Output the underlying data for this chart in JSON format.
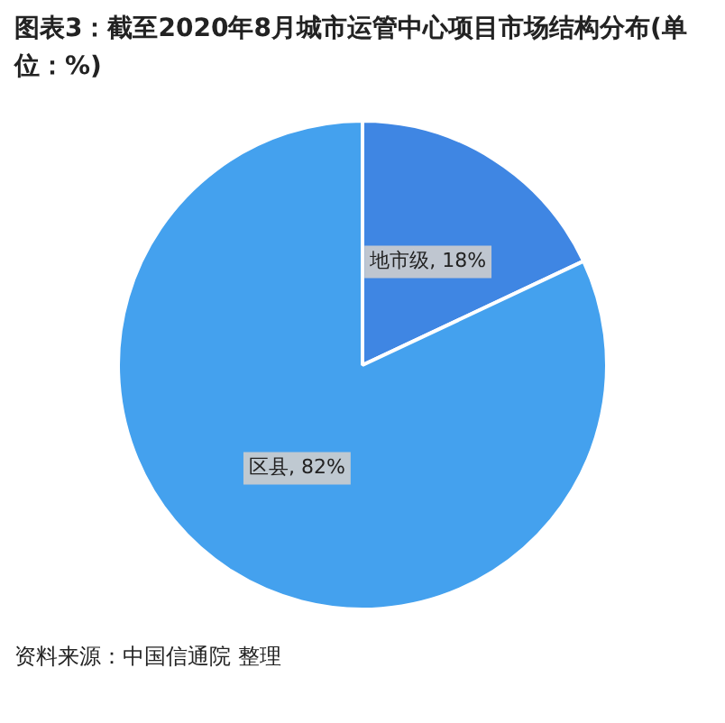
{
  "chart_data": {
    "type": "pie",
    "title": "图表3：截至2020年8月城市运管中心项目市场结构分布(单位：%)",
    "categories": [
      "地市级",
      "区县"
    ],
    "values": [
      18,
      82
    ],
    "colors": [
      "#3f86e3",
      "#44a1ee"
    ],
    "value_labels": [
      "18%",
      "82%"
    ],
    "legend": false,
    "annotations": [
      "资料来源：中国信通院 整理"
    ]
  }
}
